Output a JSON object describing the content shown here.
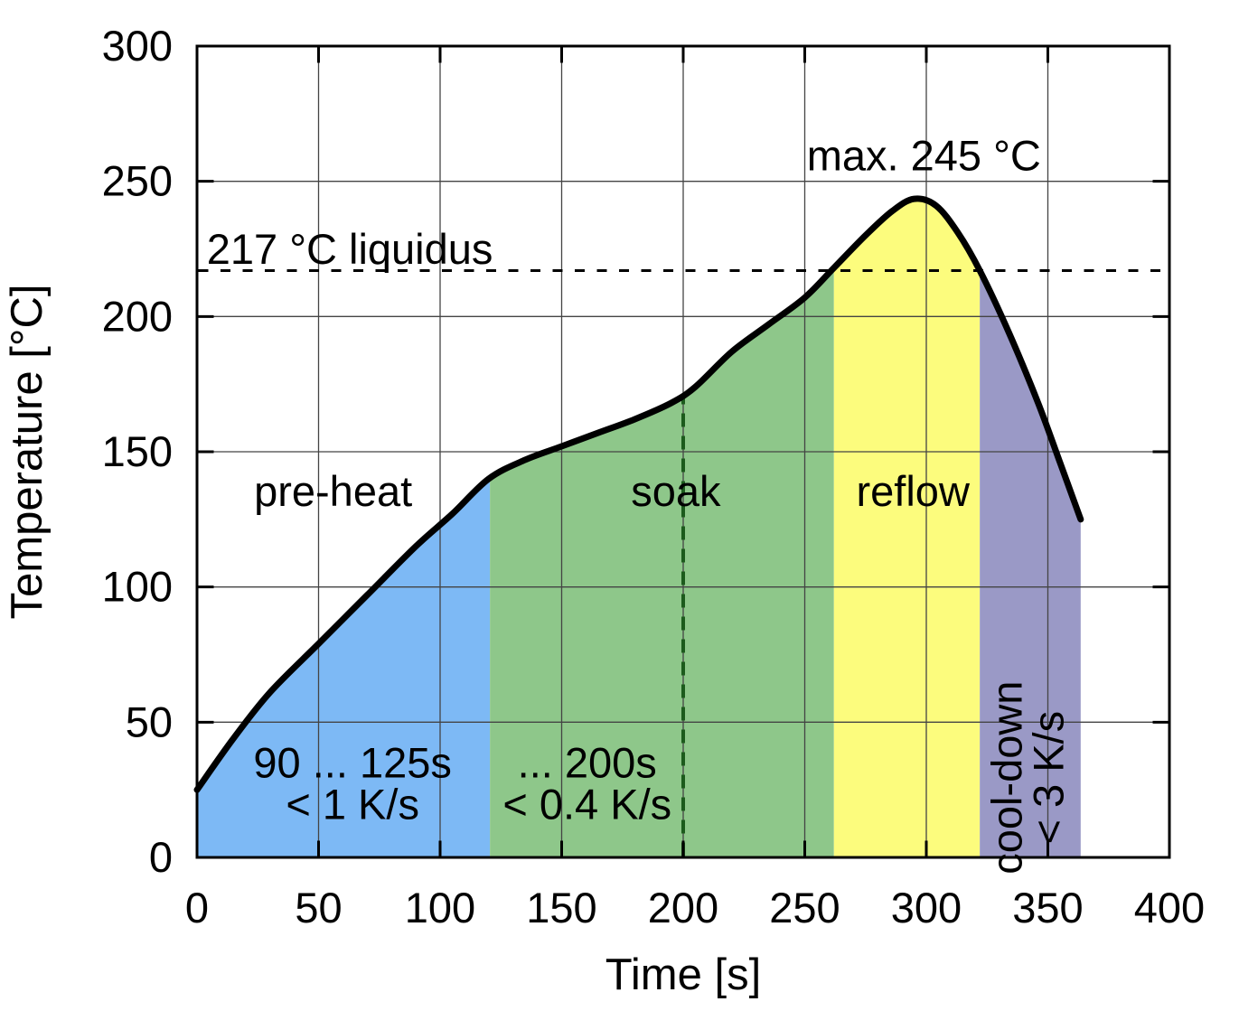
{
  "chart_data": {
    "type": "area",
    "xlabel": "Time [s]",
    "ylabel": "Temperature [°C]",
    "xlim": [
      0,
      400
    ],
    "ylim": [
      0,
      300
    ],
    "x_ticks": [
      0,
      50,
      100,
      150,
      200,
      250,
      300,
      350,
      400
    ],
    "y_ticks": [
      0,
      50,
      100,
      150,
      200,
      250,
      300
    ],
    "grid": true,
    "legend": "none",
    "profile_curve": {
      "name": "reflow-temperature-profile",
      "color": "#000000",
      "points": [
        [
          0,
          25
        ],
        [
          15,
          44
        ],
        [
          30,
          61
        ],
        [
          50,
          79
        ],
        [
          70,
          97
        ],
        [
          90,
          115
        ],
        [
          105,
          127
        ],
        [
          120,
          140
        ],
        [
          135,
          147
        ],
        [
          150,
          152
        ],
        [
          165,
          157
        ],
        [
          180,
          162
        ],
        [
          195,
          168
        ],
        [
          205,
          174
        ],
        [
          220,
          187
        ],
        [
          235,
          197
        ],
        [
          250,
          207
        ],
        [
          262,
          218
        ],
        [
          275,
          230
        ],
        [
          286,
          239
        ],
        [
          295,
          243.5
        ],
        [
          304,
          241
        ],
        [
          313,
          231
        ],
        [
          322,
          217
        ],
        [
          334,
          194
        ],
        [
          346,
          168
        ],
        [
          355,
          146
        ],
        [
          363.5,
          125
        ]
      ]
    },
    "liquidus_line": {
      "temperature": 217,
      "label": "217 °C liquidus",
      "style": "dashed",
      "color": "#000000",
      "label_anchor": {
        "t": 4,
        "T": 219.5
      }
    },
    "peak_label": {
      "text": "max. 245 °C",
      "peak_temperature": 245,
      "anchor": {
        "t": 299,
        "T": 254
      }
    },
    "soak_end_marker": {
      "t": 200,
      "T_top": 170,
      "style": "dashed",
      "color": "#1c5b1c"
    },
    "regions": [
      {
        "name": "pre-heat",
        "label": "pre-heat",
        "t_start": 0,
        "t_end": 120.5,
        "color": "#7db9f5",
        "label_anchor": {
          "t": 56,
          "T": 130
        },
        "annotation_lines": [
          "90 ... 125s",
          "< 1 K/s"
        ],
        "annotation_anchor": {
          "t": 64,
          "T": 29.5
        }
      },
      {
        "name": "soak",
        "label": "soak",
        "t_start": 120.5,
        "t_end": 262,
        "color": "#8ec78a",
        "label_anchor": {
          "t": 197,
          "T": 130
        },
        "annotation_lines": [
          "... 200s",
          "< 0.4 K/s"
        ],
        "annotation_anchor": {
          "t": 160.5,
          "T": 29.5
        }
      },
      {
        "name": "reflow",
        "label": "reflow",
        "t_start": 262,
        "t_end": 322,
        "color": "#fcfc7d",
        "label_anchor": {
          "t": 294.5,
          "T": 130
        }
      },
      {
        "name": "cool-down",
        "label_rotated_lines": [
          "cool-down",
          "< 3 K/s"
        ],
        "t_start": 322,
        "t_end": 365,
        "color": "#9a99c6",
        "label_anchor": {
          "t": 341.5,
          "T": 29.5
        }
      }
    ]
  },
  "colors": {
    "grid": "#444444",
    "frame": "#000000",
    "background": "#ffffff"
  }
}
